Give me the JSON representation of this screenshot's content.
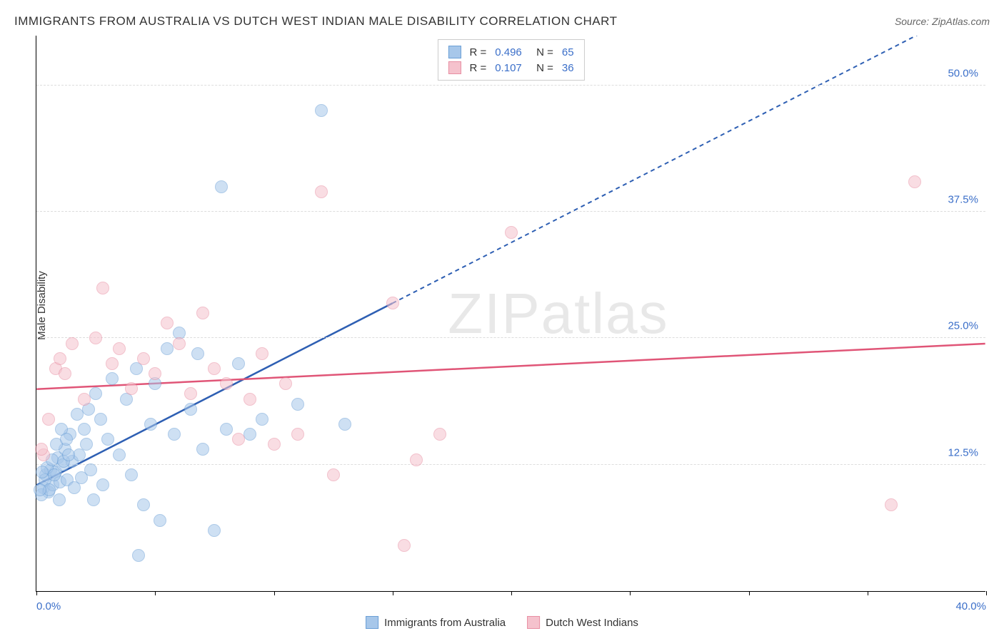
{
  "title": "IMMIGRANTS FROM AUSTRALIA VS DUTCH WEST INDIAN MALE DISABILITY CORRELATION CHART",
  "source": "Source: ZipAtlas.com",
  "ylabel": "Male Disability",
  "watermark": "ZIPatlas",
  "chart": {
    "type": "scatter",
    "xlim": [
      0,
      40
    ],
    "ylim": [
      0,
      55
    ],
    "x_ticks": [
      0,
      5,
      10,
      15,
      20,
      25,
      30,
      35,
      40
    ],
    "x_tick_labels": {
      "0": "0.0%",
      "40": "40.0%"
    },
    "y_ticks": [
      12.5,
      25.0,
      37.5,
      50.0
    ],
    "y_tick_labels": [
      "12.5%",
      "25.0%",
      "37.5%",
      "50.0%"
    ],
    "grid_color": "#dddddd",
    "background_color": "#ffffff",
    "point_radius": 9,
    "point_opacity": 0.55,
    "series": [
      {
        "name": "Immigrants from Australia",
        "color_fill": "#a7c7ea",
        "color_stroke": "#6b9fd6",
        "R": 0.496,
        "N": 65,
        "trend": {
          "x1": 0,
          "y1": 10.5,
          "x2": 15,
          "y2": 28.5,
          "extend_dashed": true,
          "color": "#2e5fb3",
          "width": 2.5
        },
        "points": [
          [
            0.3,
            10.2
          ],
          [
            0.4,
            11.5
          ],
          [
            0.5,
            9.8
          ],
          [
            0.6,
            12.0
          ],
          [
            0.7,
            10.5
          ],
          [
            0.8,
            11.8
          ],
          [
            0.9,
            13.2
          ],
          [
            1.0,
            10.8
          ],
          [
            1.1,
            12.5
          ],
          [
            1.2,
            14.0
          ],
          [
            1.3,
            11.0
          ],
          [
            1.4,
            15.5
          ],
          [
            1.5,
            12.8
          ],
          [
            1.6,
            10.2
          ],
          [
            1.7,
            17.5
          ],
          [
            1.8,
            13.5
          ],
          [
            1.9,
            11.2
          ],
          [
            2.0,
            16.0
          ],
          [
            2.1,
            14.5
          ],
          [
            2.2,
            18.0
          ],
          [
            2.3,
            12.0
          ],
          [
            2.5,
            19.5
          ],
          [
            2.7,
            17.0
          ],
          [
            2.8,
            10.5
          ],
          [
            3.0,
            15.0
          ],
          [
            3.2,
            21.0
          ],
          [
            3.5,
            13.5
          ],
          [
            3.8,
            19.0
          ],
          [
            4.0,
            11.5
          ],
          [
            4.2,
            22.0
          ],
          [
            4.5,
            8.5
          ],
          [
            4.8,
            16.5
          ],
          [
            5.0,
            20.5
          ],
          [
            5.2,
            7.0
          ],
          [
            5.5,
            24.0
          ],
          [
            5.8,
            15.5
          ],
          [
            6.0,
            25.5
          ],
          [
            6.5,
            18.0
          ],
          [
            6.8,
            23.5
          ],
          [
            7.0,
            14.0
          ],
          [
            7.5,
            6.0
          ],
          [
            7.8,
            40.0
          ],
          [
            8.0,
            16.0
          ],
          [
            8.5,
            22.5
          ],
          [
            9.0,
            15.5
          ],
          [
            9.5,
            17.0
          ],
          [
            11.0,
            18.5
          ],
          [
            12.0,
            47.5
          ],
          [
            13.0,
            16.5
          ],
          [
            0.2,
            9.5
          ],
          [
            0.35,
            11.0
          ],
          [
            0.45,
            12.2
          ],
          [
            0.55,
            10.0
          ],
          [
            0.65,
            13.0
          ],
          [
            0.75,
            11.5
          ],
          [
            0.85,
            14.5
          ],
          [
            0.95,
            9.0
          ],
          [
            1.05,
            16.0
          ],
          [
            1.15,
            12.8
          ],
          [
            1.25,
            15.0
          ],
          [
            1.35,
            13.5
          ],
          [
            4.3,
            3.5
          ],
          [
            0.15,
            10.0
          ],
          [
            0.25,
            11.8
          ],
          [
            2.4,
            9.0
          ]
        ]
      },
      {
        "name": "Dutch West Indians",
        "color_fill": "#f5c2cd",
        "color_stroke": "#e88fa3",
        "R": 0.107,
        "N": 36,
        "trend": {
          "x1": 0,
          "y1": 20.0,
          "x2": 40,
          "y2": 24.5,
          "extend_dashed": false,
          "color": "#e05577",
          "width": 2.5
        },
        "points": [
          [
            0.5,
            17.0
          ],
          [
            0.8,
            22.0
          ],
          [
            1.2,
            21.5
          ],
          [
            1.5,
            24.5
          ],
          [
            2.0,
            19.0
          ],
          [
            2.5,
            25.0
          ],
          [
            2.8,
            30.0
          ],
          [
            3.2,
            22.5
          ],
          [
            3.5,
            24.0
          ],
          [
            4.0,
            20.0
          ],
          [
            4.5,
            23.0
          ],
          [
            5.0,
            21.5
          ],
          [
            5.5,
            26.5
          ],
          [
            6.0,
            24.5
          ],
          [
            6.5,
            19.5
          ],
          [
            7.0,
            27.5
          ],
          [
            7.5,
            22.0
          ],
          [
            8.0,
            20.5
          ],
          [
            8.5,
            15.0
          ],
          [
            9.0,
            19.0
          ],
          [
            9.5,
            23.5
          ],
          [
            10.0,
            14.5
          ],
          [
            10.5,
            20.5
          ],
          [
            11.0,
            15.5
          ],
          [
            12.0,
            39.5
          ],
          [
            12.5,
            11.5
          ],
          [
            15.0,
            28.5
          ],
          [
            15.5,
            4.5
          ],
          [
            16.0,
            13.0
          ],
          [
            17.0,
            15.5
          ],
          [
            20.0,
            35.5
          ],
          [
            36.0,
            8.5
          ],
          [
            37.0,
            40.5
          ],
          [
            0.3,
            13.5
          ],
          [
            0.2,
            14.0
          ],
          [
            1.0,
            23.0
          ]
        ]
      }
    ]
  },
  "legend_top": {
    "rows": [
      {
        "swatch_fill": "#a7c7ea",
        "swatch_stroke": "#6b9fd6",
        "R": "0.496",
        "N": "65"
      },
      {
        "swatch_fill": "#f5c2cd",
        "swatch_stroke": "#e88fa3",
        "R": "0.107",
        "N": "36"
      }
    ]
  },
  "legend_bottom": {
    "items": [
      {
        "swatch_fill": "#a7c7ea",
        "swatch_stroke": "#6b9fd6",
        "label": "Immigrants from Australia"
      },
      {
        "swatch_fill": "#f5c2cd",
        "swatch_stroke": "#e88fa3",
        "label": "Dutch West Indians"
      }
    ]
  }
}
